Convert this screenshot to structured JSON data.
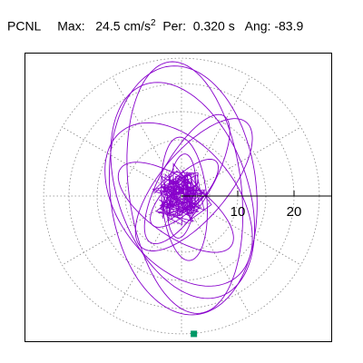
{
  "header": {
    "station": "PCNL",
    "max_label": "Max:",
    "max_value": "24.5",
    "max_unit": "cm/s",
    "max_unit_exp": "2",
    "per_label": "Per:",
    "per_value": "0.320 s",
    "ang_label": "Ang:",
    "ang_value": "-83.9"
  },
  "colors": {
    "trace": "#8800cc",
    "grid": "#888888",
    "axis": "#000000",
    "marker": "#009966"
  },
  "chart_data": {
    "type": "line",
    "title": "",
    "xlabel": "",
    "ylabel": "",
    "coordinate_system": "polar",
    "radial_tick_labels": [
      "10",
      "20"
    ],
    "radial_ticks": [
      10,
      20
    ],
    "rlim": [
      0,
      24.5
    ],
    "max": 24.5,
    "period": 0.32,
    "angle": -83.9,
    "grid": true,
    "series": [
      {
        "ellipses": [
          {
            "cx": 0.3,
            "cy": 1.0,
            "a": 22.2,
            "b": 13.0,
            "rot": 96
          },
          {
            "cx": 0.6,
            "cy": 1.5,
            "a": 22.5,
            "b": 10.0,
            "rot": 97
          },
          {
            "cx": 0.2,
            "cy": 1.0,
            "a": 20.0,
            "b": 11.5,
            "rot": 110
          },
          {
            "cx": -0.5,
            "cy": -1.5,
            "a": 16.5,
            "b": 10.5,
            "rot": 128
          },
          {
            "cx": 2.2,
            "cy": 2.0,
            "a": 14.5,
            "b": 6.0,
            "rot": 50
          },
          {
            "cx": 1.0,
            "cy": 3.0,
            "a": 13.0,
            "b": 4.5,
            "rot": 60
          },
          {
            "cx": 0.5,
            "cy": -0.5,
            "a": 11.0,
            "b": 4.0,
            "rot": 95
          },
          {
            "cx": -1.0,
            "cy": -2.0,
            "a": 12.0,
            "b": 5.0,
            "rot": 145
          },
          {
            "cx": 0.0,
            "cy": 0.0,
            "a": 7.5,
            "b": 2.5,
            "rot": 85
          },
          {
            "cx": 0.5,
            "cy": 0.5,
            "a": 8.0,
            "b": 3.0,
            "rot": 45
          }
        ],
        "end_point": {
          "x": 2.2,
          "y": -24.5
        }
      }
    ]
  }
}
